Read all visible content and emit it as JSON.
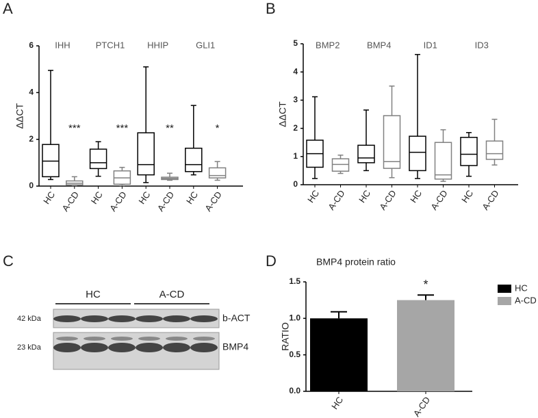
{
  "panel_labels": [
    "A",
    "B",
    "C",
    "D"
  ],
  "chart_data": [
    {
      "type": "box",
      "ylabel": "ΔΔCT",
      "groups": [
        "IHH",
        "PTCH1",
        "HHIP",
        "GLI1"
      ],
      "categories": [
        "HC",
        "A-CD",
        "HC",
        "A-CD",
        "HC",
        "A-CD",
        "HC",
        "A-CD"
      ],
      "significance": [
        null,
        "***",
        null,
        "***",
        null,
        "**",
        null,
        "*"
      ],
      "boxes": [
        {
          "min": 0.28,
          "q1": 0.4,
          "median": 1.07,
          "q3": 1.78,
          "max": 4.95,
          "color": "#000000"
        },
        {
          "min": 0.02,
          "q1": 0.05,
          "median": 0.12,
          "q3": 0.22,
          "max": 0.4,
          "color": "#808080"
        },
        {
          "min": 0.42,
          "q1": 0.75,
          "median": 1.0,
          "q3": 1.58,
          "max": 1.9,
          "color": "#000000"
        },
        {
          "min": 0.02,
          "q1": 0.08,
          "median": 0.35,
          "q3": 0.65,
          "max": 0.8,
          "color": "#808080"
        },
        {
          "min": 0.15,
          "q1": 0.48,
          "median": 0.92,
          "q3": 2.28,
          "max": 5.1,
          "color": "#000000"
        },
        {
          "min": 0.25,
          "q1": 0.28,
          "median": 0.33,
          "q3": 0.38,
          "max": 0.55,
          "color": "#808080"
        },
        {
          "min": 0.48,
          "q1": 0.62,
          "median": 0.92,
          "q3": 1.62,
          "max": 3.45,
          "color": "#000000"
        },
        {
          "min": 0.25,
          "q1": 0.35,
          "median": 0.45,
          "q3": 0.78,
          "max": 1.05,
          "color": "#808080"
        }
      ],
      "ylim": [
        0,
        6
      ],
      "yticks": [
        0,
        2,
        4,
        6
      ]
    },
    {
      "type": "box",
      "ylabel": "ΔΔCT",
      "groups": [
        "BMP2",
        "BMP4",
        "ID1",
        "ID3"
      ],
      "categories": [
        "HC",
        "A-CD",
        "HC",
        "A-CD",
        "HC",
        "A-CD",
        "HC",
        "A-CD"
      ],
      "boxes": [
        {
          "min": 0.22,
          "q1": 0.62,
          "median": 1.1,
          "q3": 1.58,
          "max": 3.12,
          "color": "#000000"
        },
        {
          "min": 0.4,
          "q1": 0.48,
          "median": 0.72,
          "q3": 0.92,
          "max": 1.05,
          "color": "#808080"
        },
        {
          "min": 0.5,
          "q1": 0.78,
          "median": 0.95,
          "q3": 1.4,
          "max": 2.65,
          "color": "#000000"
        },
        {
          "min": 0.25,
          "q1": 0.58,
          "median": 0.82,
          "q3": 2.45,
          "max": 3.5,
          "color": "#808080"
        },
        {
          "min": 0.22,
          "q1": 0.5,
          "median": 1.15,
          "q3": 1.72,
          "max": 4.62,
          "color": "#000000"
        },
        {
          "min": 0.12,
          "q1": 0.2,
          "median": 0.35,
          "q3": 1.5,
          "max": 1.95,
          "color": "#808080"
        },
        {
          "min": 0.3,
          "q1": 0.68,
          "median": 1.08,
          "q3": 1.68,
          "max": 1.85,
          "color": "#000000"
        },
        {
          "min": 0.7,
          "q1": 0.9,
          "median": 1.1,
          "q3": 1.55,
          "max": 2.32,
          "color": "#808080"
        }
      ],
      "ylim": [
        0,
        5
      ],
      "yticks": [
        0,
        1,
        2,
        3,
        4,
        5
      ]
    },
    {
      "type": "bar",
      "title": "BMP4 protein ratio",
      "ylabel": "RATIO",
      "categories": [
        "HC",
        "A-CD"
      ],
      "values": [
        1.0,
        1.25
      ],
      "errors": [
        0.09,
        0.07
      ],
      "colors": [
        "#000000",
        "#a6a6a6"
      ],
      "significance": [
        null,
        "*"
      ],
      "ylim": [
        0,
        1.5
      ],
      "yticks": [
        {
          "value": 0,
          "label": "0.0"
        },
        {
          "value": 0.5,
          "label": "0.5"
        },
        {
          "value": 1,
          "label": "1.0"
        },
        {
          "value": 1.5,
          "label": "1.5"
        }
      ],
      "legend": "right"
    }
  ],
  "blot": {
    "groups": [
      "HC",
      "A-CD"
    ],
    "sizes": [
      "42 kDa",
      "23 kDa"
    ],
    "bands": [
      "b-ACT",
      "BMP4"
    ]
  }
}
